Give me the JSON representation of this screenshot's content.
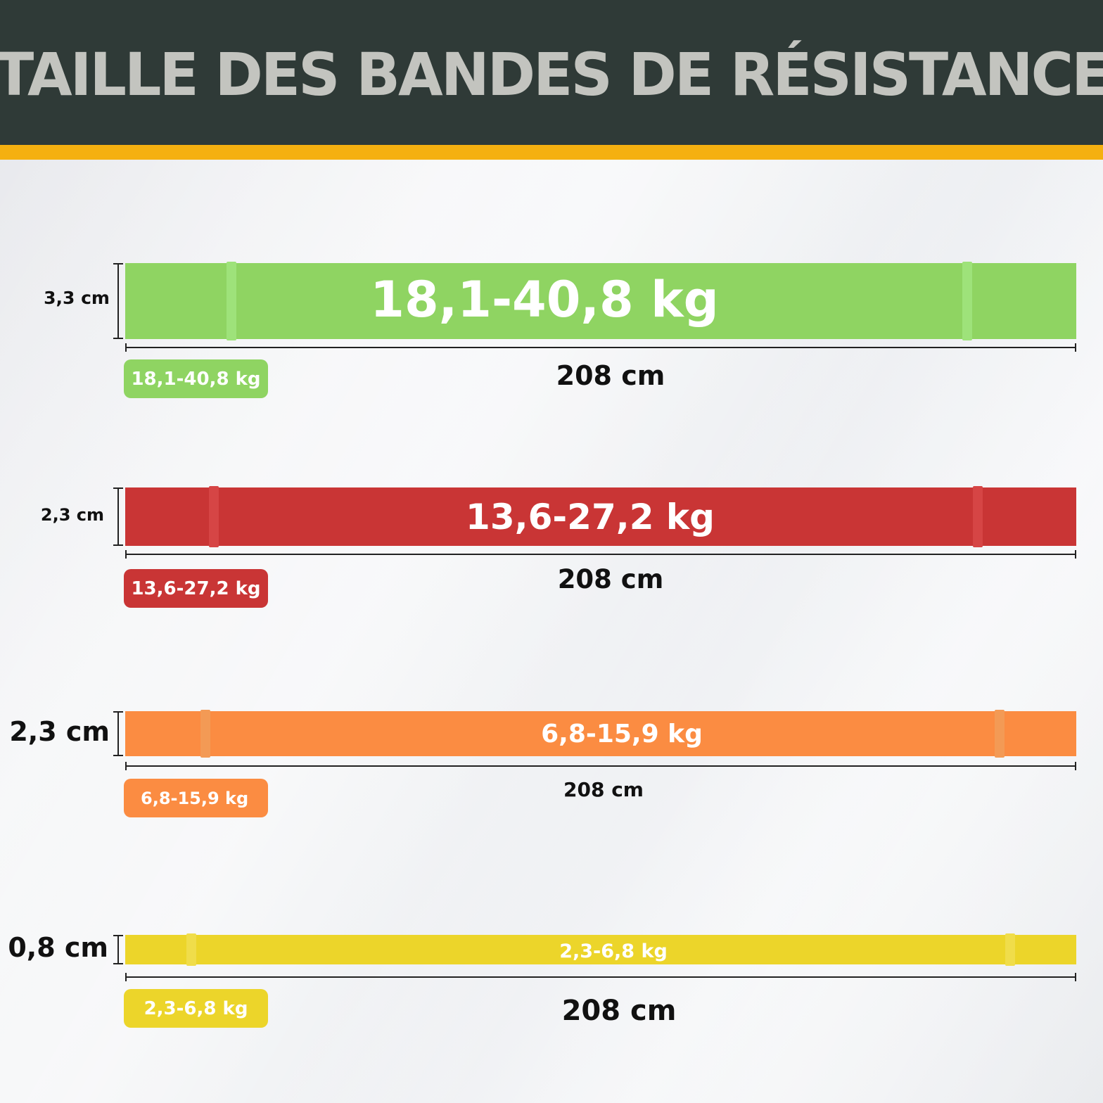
{
  "header": {
    "title": "TAILLE DES BANDES DE RÉSISTANCE"
  },
  "colors": {
    "header_bg": "#2f3a37",
    "title_text": "#c3c4bf",
    "accent_stripe": "#f5b010",
    "green": "#8fd462",
    "red": "#c93535",
    "orange": "#fb8c42",
    "yellow": "#ecd52a"
  },
  "bands": [
    {
      "color": "green",
      "resistance": "18,1-40,8 kg",
      "width": "3,3 cm",
      "length": "208 cm",
      "badge": "18,1-40,8 kg"
    },
    {
      "color": "red",
      "resistance": "13,6-27,2 kg",
      "width": "2,3 cm",
      "length": "208 cm",
      "badge": "13,6-27,2 kg"
    },
    {
      "color": "orange",
      "resistance": "6,8-15,9 kg",
      "width": "2,3 cm",
      "length": "208 cm",
      "badge": "6,8-15,9 kg"
    },
    {
      "color": "yellow",
      "resistance": "2,3-6,8 kg",
      "width": "0,8 cm",
      "length": "208 cm",
      "badge": "2,3-6,8 kg"
    }
  ]
}
